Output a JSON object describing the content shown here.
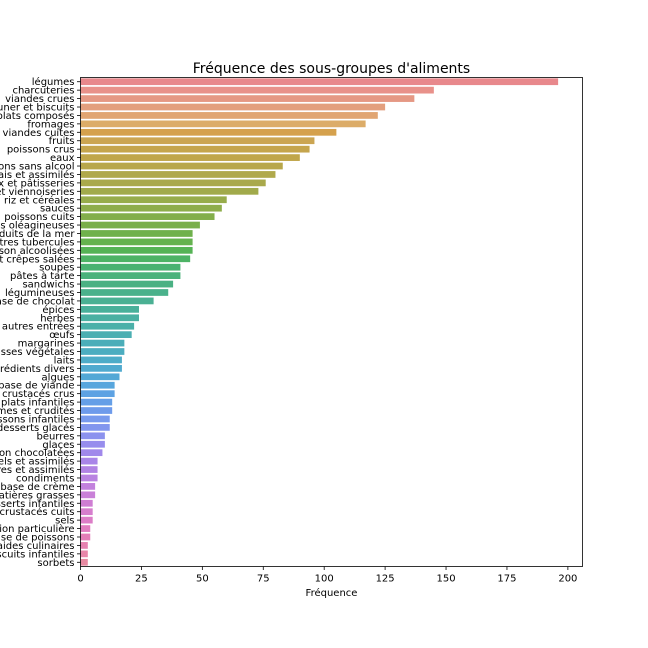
{
  "chart_data": {
    "type": "bar",
    "orientation": "horizontal",
    "title": "Fréquence des sous-groupes d'aliments",
    "xlabel": "Fréquence",
    "ylabel": "",
    "xlim": [
      0,
      206
    ],
    "xticks": [
      0,
      25,
      50,
      75,
      100,
      125,
      150,
      175,
      200
    ],
    "grid": false,
    "categories": [
      "légumes",
      "charcuteries",
      "viandes crues",
      "biscuits apéritifs, petit-déjeuner et biscuits",
      "plats composés",
      "fromages",
      "viandes cuites",
      "fruits",
      "poissons crus",
      "eaux",
      "boissons sans alcool",
      "produits laitiers frais et assimilés",
      "gâteaux et pâtisseries",
      "pains et viennoiseries",
      "pâtes, riz et céréales",
      "sauces",
      "poissons cuits",
      "fruits à coque et graines oléagineuses",
      "autres produits de la mer",
      "pommes de terre et autres tubercules",
      "boisson alcoolisées",
      "pizzas, tartes et crêpes salées",
      "soupes",
      "pâtes à tarte",
      "sandwichs",
      "légumineuses",
      "produits à base de chocolat",
      "épices",
      "herbes",
      "salades composées et autres entrées",
      "œufs",
      "margarines",
      "huiles et graisses végétales",
      "laits",
      "ingrédients divers",
      "algues",
      "produits à base de viande",
      "mollusques et crustacés crus",
      "plats infantiles",
      "légumes et crudités",
      "boissons infantiles",
      "desserts glacés",
      "beurres",
      "glaces",
      "confiserie non chocolatées",
      "sels et assimilés",
      "sucres et assimilés",
      "condiments",
      "produits à base de crème",
      "autres matières grasses",
      "desserts infantiles",
      "mollusques et crustacés cuits",
      "sels",
      "aliments destinés à une alimentation particulière",
      "autres produits à base de poissons",
      "aides culinaires",
      "biscuits infantiles",
      "sorbets"
    ],
    "values": [
      196,
      145,
      137,
      125,
      122,
      117,
      105,
      96,
      94,
      90,
      83,
      80,
      76,
      73,
      60,
      58,
      55,
      49,
      46,
      46,
      46,
      45,
      41,
      41,
      38,
      36,
      30,
      24,
      24,
      22,
      21,
      18,
      18,
      17,
      17,
      16,
      14,
      14,
      13,
      13,
      12,
      12,
      10,
      10,
      9,
      7,
      7,
      7,
      6,
      6,
      5,
      5,
      5,
      4,
      4,
      3,
      3,
      3
    ],
    "colors": [
      "#e8888c",
      "#e8918a",
      "#e59884",
      "#e39f7e",
      "#e1a572",
      "#dcac68",
      "#d5a14d",
      "#cba552",
      "#c5a54d",
      "#c0a64b",
      "#b8a74b",
      "#b0a94b",
      "#a9a94b",
      "#a1aa4b",
      "#97ac4b",
      "#8ead4b",
      "#83ae4b",
      "#7aaf4b",
      "#6fb14c",
      "#64b24e",
      "#55b355",
      "#4db365",
      "#4ab271",
      "#4ab27b",
      "#4ab183",
      "#4ab18b",
      "#4ab093",
      "#49b09a",
      "#4ab0a2",
      "#4ab0a9",
      "#4bafb2",
      "#4baeb9",
      "#4cadc0",
      "#4eacc8",
      "#50aacf",
      "#53a8d6",
      "#57a6dd",
      "#5da2e3",
      "#659fe7",
      "#6e9beb",
      "#789aed",
      "#8296ee",
      "#8c92ee",
      "#978ded",
      "#a088eb",
      "#a985e8",
      "#b183e4",
      "#b983e1",
      "#c281dd",
      "#c980d8",
      "#cf7ed3",
      "#d67ecd",
      "#dc7dc7",
      "#e07dc0",
      "#e47eb8",
      "#e682b1",
      "#e786a9",
      "#e88aa2"
    ]
  }
}
